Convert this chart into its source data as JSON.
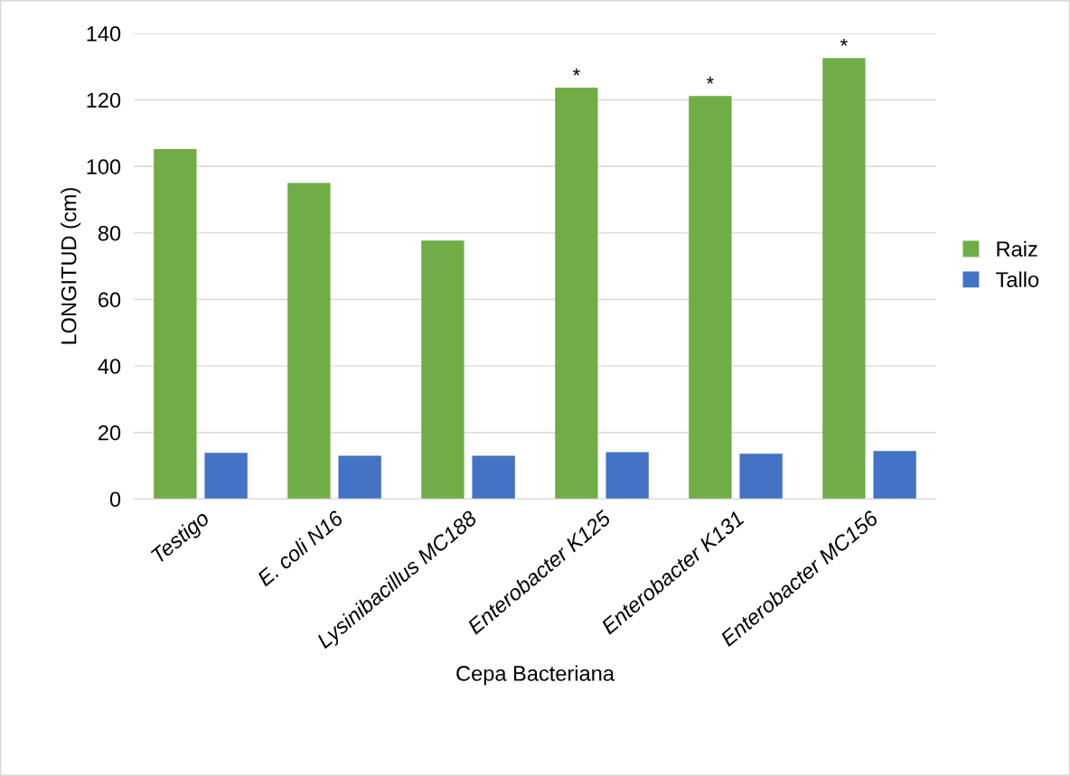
{
  "chart_data": {
    "type": "bar",
    "xlabel": "Cepa Bacteriana",
    "ylabel": "LONGITUD (cm)",
    "categories": [
      "Testigo",
      "E. coli N16",
      "Lysinibacillus MC188",
      "Enterobacter K125",
      "Enterobacter K131",
      "Enterobacter MC156"
    ],
    "series": [
      {
        "name": "Raiz",
        "color": "#70ad47",
        "values": [
          105.2,
          95,
          77.7,
          123.7,
          121.2,
          132.6
        ]
      },
      {
        "name": "Tallo",
        "color": "#4472c4",
        "values": [
          13.9,
          13,
          13,
          14.1,
          13.6,
          14.4
        ]
      }
    ],
    "ylim": [
      0,
      140
    ],
    "yticks": [
      0,
      20,
      40,
      60,
      80,
      100,
      120,
      140
    ],
    "grid": "y",
    "legend": "right",
    "annotations": [
      "*",
      "*",
      "*"
    ]
  }
}
